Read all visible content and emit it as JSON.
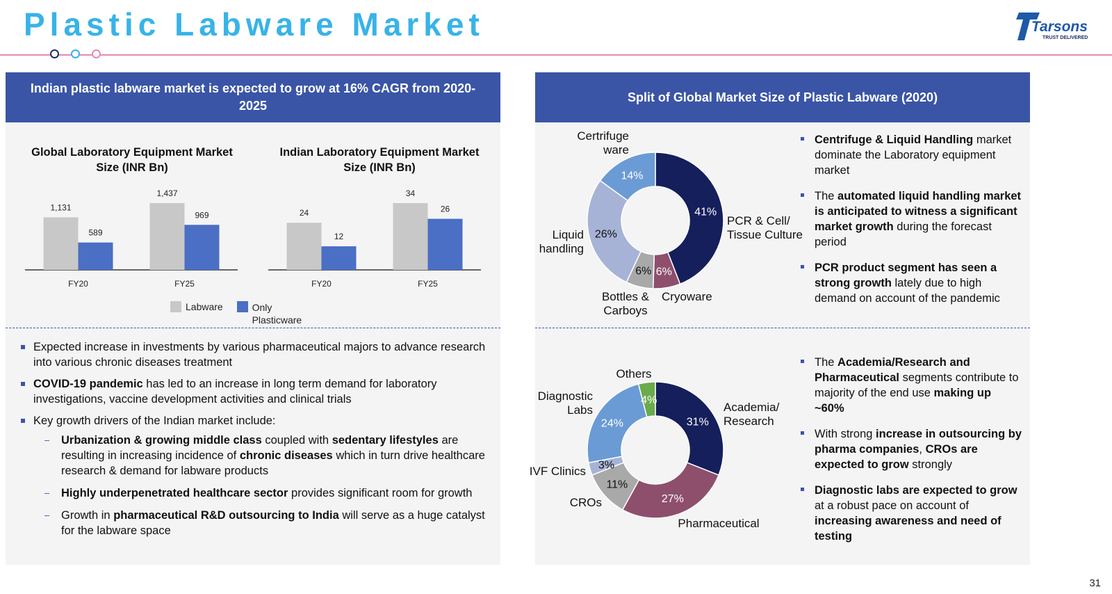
{
  "page": {
    "title": "Plastic Labware Market",
    "page_number": "31",
    "logo": {
      "brand": "Tarsons",
      "tagline": "TRUST DELIVERED"
    }
  },
  "left_panel": {
    "header": "Indian plastic labware market is expected to grow at 16% CAGR from 2020-2025",
    "bullets": [
      [
        {
          "t": "Expected increase in investments by various pharmaceutical majors to advance research into various chronic diseases treatment",
          "b": false
        }
      ],
      [
        {
          "t": "COVID-19 pandemic",
          "b": true
        },
        {
          "t": " has led to an increase in long term demand for laboratory investigations, vaccine development activities and clinical trials",
          "b": false
        }
      ],
      [
        {
          "t": "Key growth drivers of the Indian market include:",
          "b": false
        }
      ]
    ],
    "sub_bullets": [
      [
        {
          "t": "Urbanization & growing middle class",
          "b": true
        },
        {
          "t": " coupled with ",
          "b": false
        },
        {
          "t": "sedentary lifestyles",
          "b": true
        },
        {
          "t": " are resulting in increasing incidence of ",
          "b": false
        },
        {
          "t": "chronic diseases",
          "b": true
        },
        {
          "t": " which in turn drive healthcare research & demand for labware products",
          "b": false
        }
      ],
      [
        {
          "t": "Highly underpenetrated healthcare sector",
          "b": true
        },
        {
          "t": " provides significant room for growth",
          "b": false
        }
      ],
      [
        {
          "t": "Growth in ",
          "b": false
        },
        {
          "t": "pharmaceutical R&D outsourcing to India",
          "b": true
        },
        {
          "t": " will serve as a huge catalyst for the labware space",
          "b": false
        }
      ]
    ]
  },
  "right_panel": {
    "header": "Split of Global Market Size of Plastic Labware (2020)",
    "bullets_top": [
      [
        {
          "t": "Centrifuge & Liquid Handling",
          "b": true
        },
        {
          "t": " market dominate the Laboratory equipment market",
          "b": false
        }
      ],
      [
        {
          "t": "The ",
          "b": false
        },
        {
          "t": "automated liquid handling market is anticipated to witness a significant market growth",
          "b": true
        },
        {
          "t": " during the forecast period",
          "b": false
        }
      ],
      [
        {
          "t": "PCR product segment has seen a strong growth",
          "b": true
        },
        {
          "t": " lately due to high demand on account of the pandemic",
          "b": false
        }
      ]
    ],
    "bullets_bottom": [
      [
        {
          "t": "The ",
          "b": false
        },
        {
          "t": "Academia/Research and Pharmaceutical",
          "b": true
        },
        {
          "t": " segments contribute to majority of the end use ",
          "b": false
        },
        {
          "t": "making up ~60%",
          "b": true
        }
      ],
      [
        {
          "t": "With strong ",
          "b": false
        },
        {
          "t": "increase in outsourcing by pharma companies",
          "b": true
        },
        {
          "t": ", ",
          "b": false
        },
        {
          "t": "CROs are expected to grow",
          "b": true
        },
        {
          "t": " strongly",
          "b": false
        }
      ],
      [
        {
          "t": "Diagnostic labs are expected to grow",
          "b": true
        },
        {
          "t": " at a robust pace on account of ",
          "b": false
        },
        {
          "t": "increasing awareness and need of testing",
          "b": true
        }
      ]
    ]
  },
  "legend": {
    "items": [
      {
        "label": "Labware",
        "color": "#c8c8c8"
      },
      {
        "label": "Only Plasticware",
        "color": "#4a6fc4"
      }
    ]
  },
  "chart_data": [
    {
      "type": "bar",
      "title": "Global Laboratory Equipment Market Size (INR Bn)",
      "categories": [
        "FY20",
        "FY25"
      ],
      "series": [
        {
          "name": "Labware",
          "values": [
            1131,
            1437
          ],
          "labels": [
            "1,131",
            "1,437"
          ],
          "color": "#c8c8c8"
        },
        {
          "name": "Only Plasticware",
          "values": [
            589,
            969
          ],
          "labels": [
            "589",
            "969"
          ],
          "color": "#4a6fc4"
        }
      ],
      "ylim": [
        0,
        1437
      ]
    },
    {
      "type": "bar",
      "title": "Indian Laboratory Equipment Market Size (INR Bn)",
      "categories": [
        "FY20",
        "FY25"
      ],
      "series": [
        {
          "name": "Labware",
          "values": [
            24,
            34
          ],
          "labels": [
            "24",
            "34"
          ],
          "color": "#c8c8c8"
        },
        {
          "name": "Only Plasticware",
          "values": [
            12,
            26
          ],
          "labels": [
            "12",
            "26"
          ],
          "color": "#4a6fc4"
        }
      ],
      "ylim": [
        0,
        34
      ]
    },
    {
      "type": "pie",
      "donut": true,
      "slices": [
        {
          "label": "PCR & Cell/ Tissue Culture",
          "value": 41,
          "pct": "41%",
          "color": "#141f5b",
          "text_color": "#ffffff"
        },
        {
          "label": "Cryoware",
          "value": 6,
          "pct": "6%",
          "color": "#8e4f6d",
          "text_color": "#ffffff"
        },
        {
          "label": "Bottles & Carboys",
          "value": 6,
          "pct": "6%",
          "color": "#a9a9a9",
          "text_color": "#111111"
        },
        {
          "label": "Liquid handling",
          "value": 26,
          "pct": "26%",
          "color": "#a7b3d6",
          "text_color": "#111111"
        },
        {
          "label": "Certrifuge ware",
          "value": 14,
          "pct": "14%",
          "color": "#6a9bd5",
          "text_color": "#ffffff"
        }
      ]
    },
    {
      "type": "pie",
      "donut": true,
      "slices": [
        {
          "label": "Academia/ Research",
          "value": 31,
          "pct": "31%",
          "color": "#141f5b",
          "text_color": "#ffffff"
        },
        {
          "label": "Pharmaceutical",
          "value": 27,
          "pct": "27%",
          "color": "#8e4f6d",
          "text_color": "#ffffff"
        },
        {
          "label": "CROs",
          "value": 11,
          "pct": "11%",
          "color": "#a9a9a9",
          "text_color": "#111111"
        },
        {
          "label": "IVF Clinics",
          "value": 3,
          "pct": "3%",
          "color": "#a7b3d6",
          "text_color": "#111111"
        },
        {
          "label": "Diagnostic Labs",
          "value": 24,
          "pct": "24%",
          "color": "#6a9bd5",
          "text_color": "#ffffff"
        },
        {
          "label": "Others",
          "value": 4,
          "pct": "4%",
          "color": "#6aab4c",
          "text_color": "#ffffff"
        }
      ]
    }
  ]
}
